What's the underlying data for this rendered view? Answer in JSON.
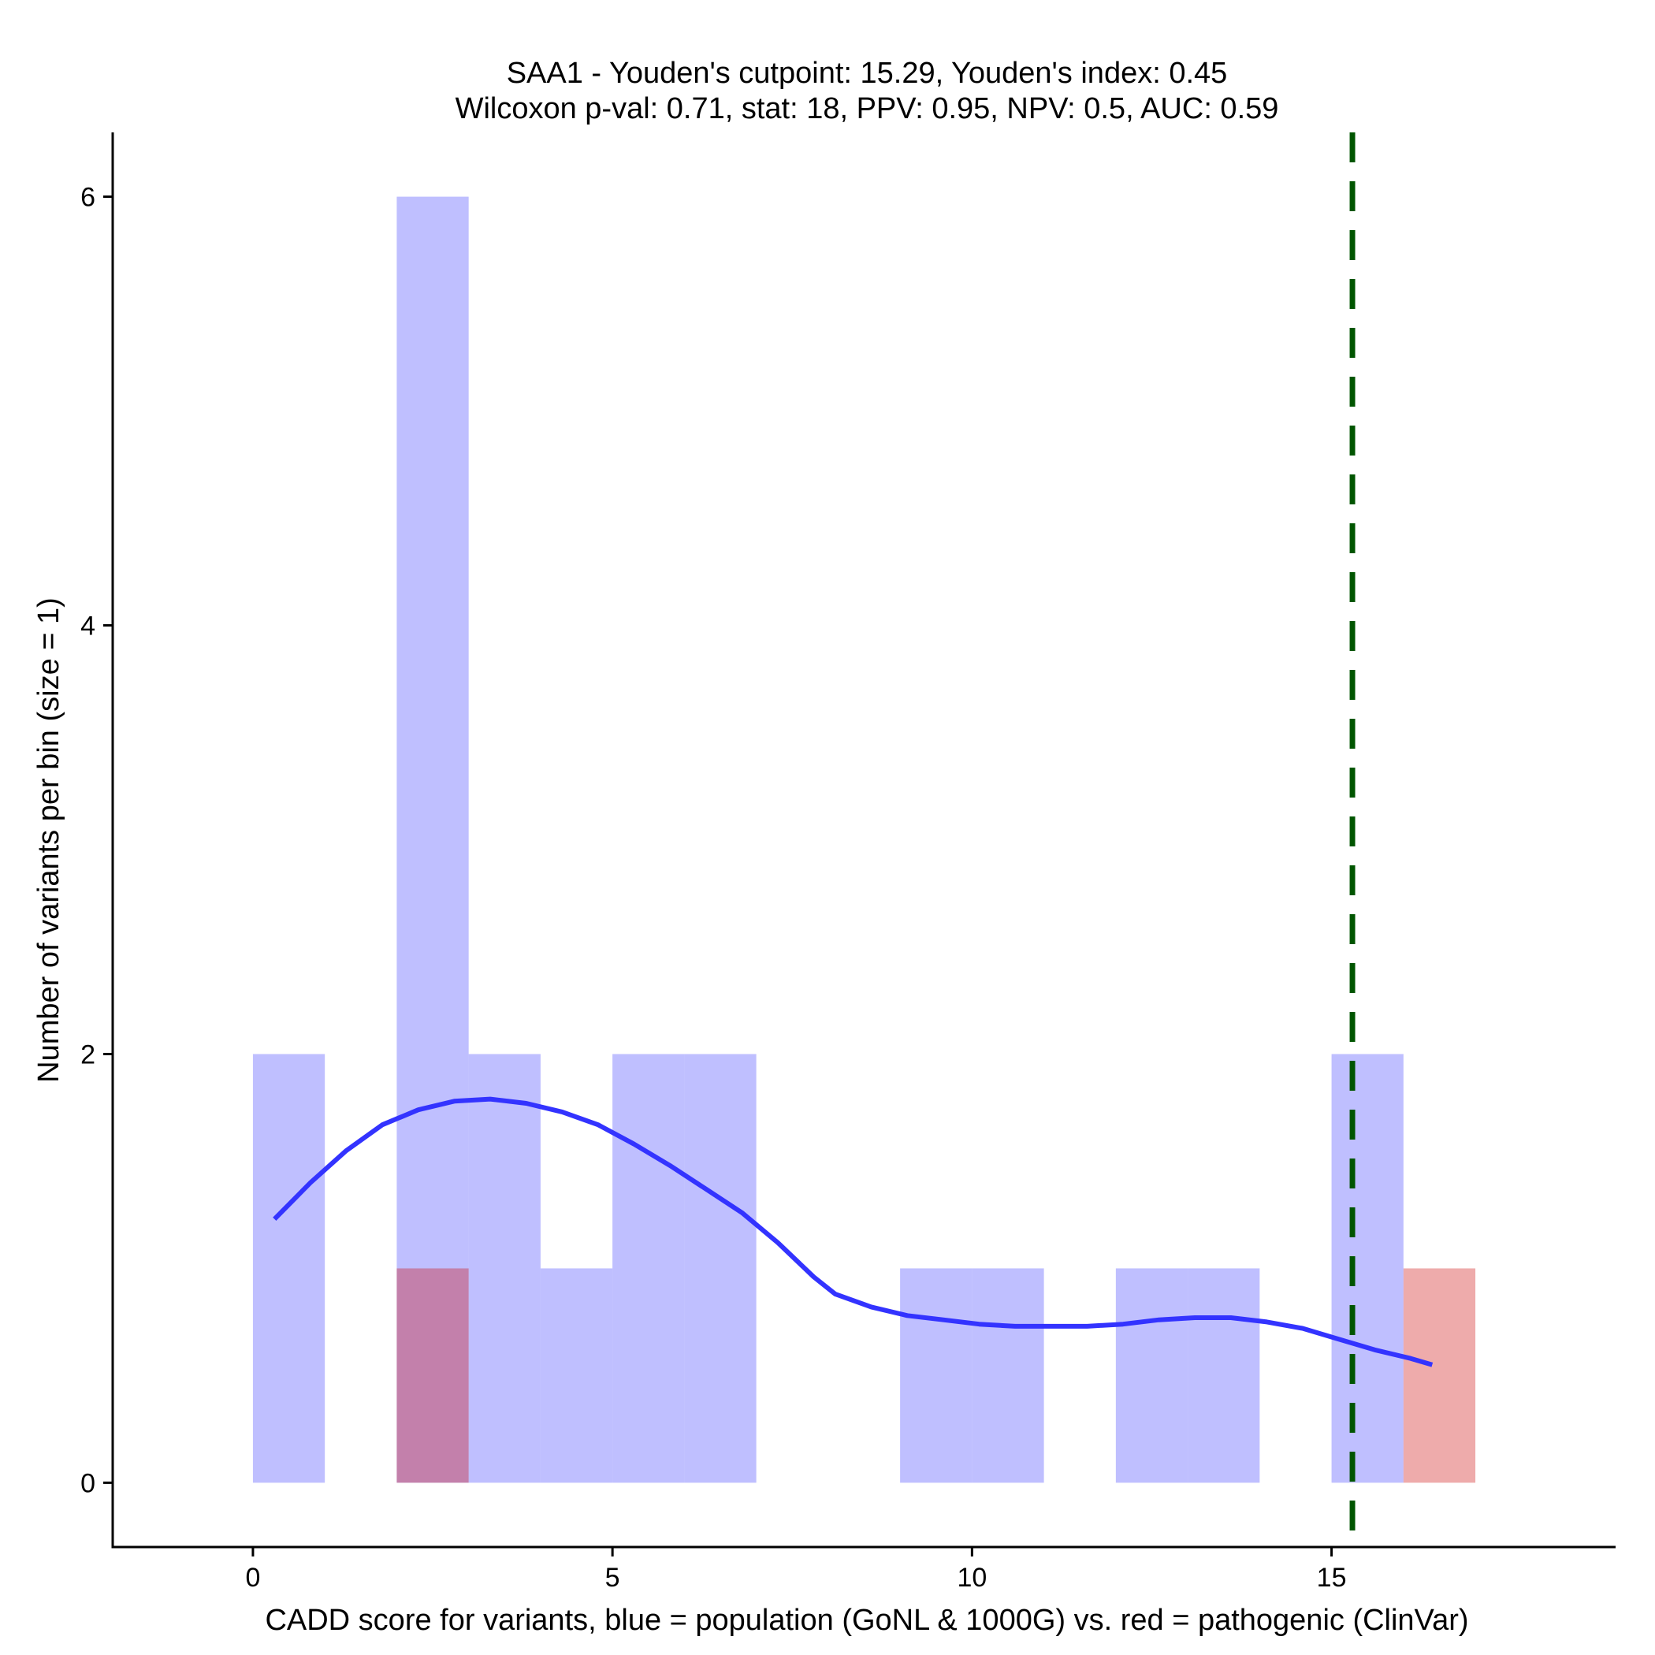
{
  "chart_data": {
    "type": "bar",
    "title_line1": "SAA1 - Youden's cutpoint: 15.29, Youden's index: 0.45",
    "title_line2": "Wilcoxon p-val: 0.71, stat: 18, PPV: 0.95, NPV: 0.5, AUC: 0.59",
    "xlabel": "CADD score for variants, blue = population (GoNL & 1000G) vs. red = pathogenic (ClinVar)",
    "ylabel": "Number of variants per bin (size = 1)",
    "xlim": [
      -1.95,
      18.95
    ],
    "ylim": [
      -0.3,
      6.3
    ],
    "x_ticks": [
      0,
      5,
      10,
      15
    ],
    "x_tick_labels": [
      "0",
      "5",
      "10",
      "15"
    ],
    "y_ticks": [
      0,
      2,
      4,
      6
    ],
    "y_tick_labels": [
      "0",
      "2",
      "4",
      "6"
    ],
    "bin_width": 1,
    "series": [
      {
        "name": "population",
        "color": "#8080ff",
        "opacity": 0.5,
        "bin_starts": [
          0,
          1,
          2,
          3,
          4,
          5,
          6,
          7,
          8,
          9,
          10,
          11,
          12,
          13,
          14,
          15,
          16
        ],
        "values": [
          2,
          0,
          6,
          2,
          1,
          2,
          2,
          0,
          0,
          1,
          1,
          0,
          1,
          1,
          0,
          2,
          0
        ]
      },
      {
        "name": "pathogenic",
        "color": "#cc0000",
        "opacity": 0.33,
        "bin_starts": [
          2,
          16
        ],
        "values": [
          1,
          1
        ]
      }
    ],
    "density_curve": {
      "color": "#3333ff",
      "x": [
        0.3,
        0.8,
        1.3,
        1.8,
        2.3,
        2.8,
        3.3,
        3.8,
        4.3,
        4.8,
        5.3,
        5.8,
        6.3,
        6.8,
        7.3,
        7.8,
        8.1,
        8.6,
        9.1,
        9.6,
        10.1,
        10.6,
        11.1,
        11.6,
        12.1,
        12.6,
        13.1,
        13.6,
        14.1,
        14.6,
        15.1,
        15.6,
        16.1,
        16.4
      ],
      "y": [
        1.23,
        1.4,
        1.55,
        1.67,
        1.74,
        1.78,
        1.79,
        1.77,
        1.73,
        1.67,
        1.58,
        1.48,
        1.37,
        1.26,
        1.12,
        0.96,
        0.88,
        0.82,
        0.78,
        0.76,
        0.74,
        0.73,
        0.73,
        0.73,
        0.74,
        0.76,
        0.77,
        0.77,
        0.75,
        0.72,
        0.67,
        0.62,
        0.58,
        0.55
      ]
    },
    "cutpoint": {
      "value": 15.29,
      "color": "#005500",
      "style": "dashed"
    }
  }
}
